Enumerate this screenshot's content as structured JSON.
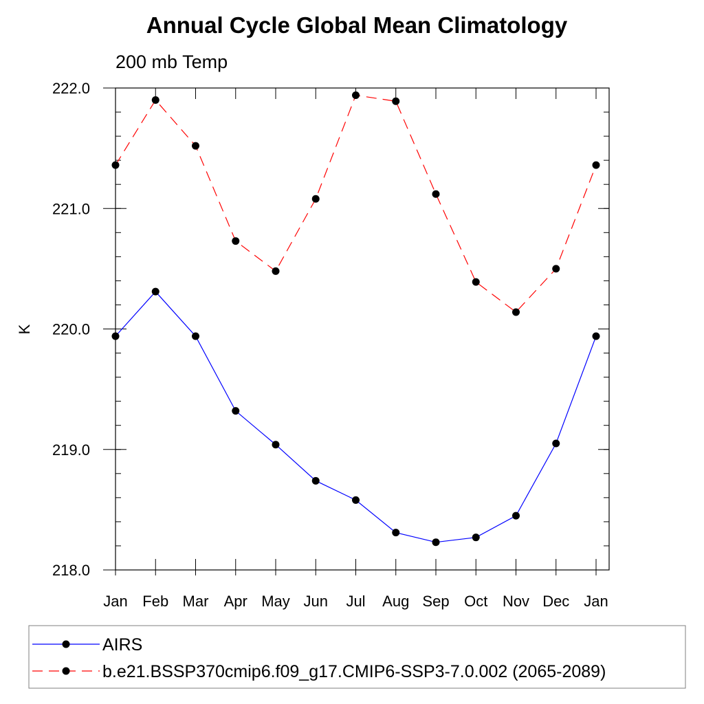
{
  "chart_data": {
    "type": "line",
    "title": "Annual Cycle Global Mean Climatology",
    "subtitle": "200 mb Temp",
    "xlabel": "",
    "ylabel": "K",
    "categories": [
      "Jan",
      "Feb",
      "Mar",
      "Apr",
      "May",
      "Jun",
      "Jul",
      "Aug",
      "Sep",
      "Oct",
      "Nov",
      "Dec",
      "Jan"
    ],
    "ylim": [
      218.0,
      222.0
    ],
    "yticks": [
      218.0,
      219.0,
      220.0,
      221.0,
      222.0
    ],
    "ytick_labels": [
      "218.0",
      "219.0",
      "220.0",
      "221.0",
      "222.0"
    ],
    "yminor_step": 0.2,
    "series": [
      {
        "name": "AIRS",
        "color": "#0000ff",
        "dash": "solid",
        "marker": "circle",
        "values": [
          219.94,
          220.31,
          219.94,
          219.32,
          219.04,
          218.74,
          218.58,
          218.31,
          218.23,
          218.27,
          218.45,
          219.05,
          219.94
        ]
      },
      {
        "name": "b.e21.BSSP370cmip6.f09_g17.CMIP6-SSP3-7.0.002 (2065-2089)",
        "color": "#ff0000",
        "dash": "dashed",
        "marker": "circle",
        "values": [
          221.36,
          221.9,
          221.52,
          220.73,
          220.48,
          221.08,
          221.94,
          221.89,
          221.12,
          220.39,
          220.14,
          220.5,
          221.36
        ]
      }
    ],
    "legend_position": "bottom"
  }
}
